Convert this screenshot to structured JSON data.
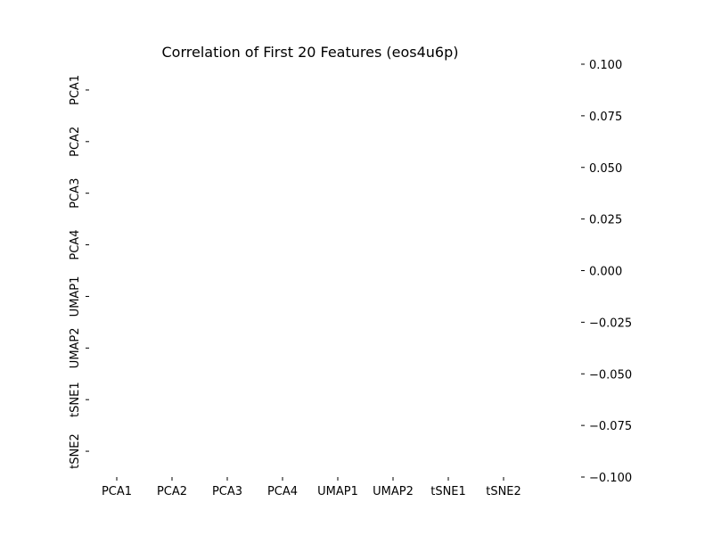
{
  "chart_data": {
    "type": "heatmap",
    "title": "Correlation of First 20 Features (eos4u6p)",
    "x_categories": [
      "PCA1",
      "PCA2",
      "PCA3",
      "PCA4",
      "UMAP1",
      "UMAP2",
      "tSNE1",
      "tSNE2"
    ],
    "y_categories": [
      "PCA1",
      "PCA2",
      "PCA3",
      "PCA4",
      "UMAP1",
      "UMAP2",
      "tSNE1",
      "tSNE2"
    ],
    "values": [],
    "colorbar": {
      "range": [
        -0.1,
        0.1
      ],
      "ticks": [
        "0.100",
        "0.075",
        "0.050",
        "0.025",
        "0.000",
        "−0.025",
        "−0.050",
        "−0.075",
        "−0.100"
      ]
    },
    "xlabel": "",
    "ylabel": ""
  }
}
